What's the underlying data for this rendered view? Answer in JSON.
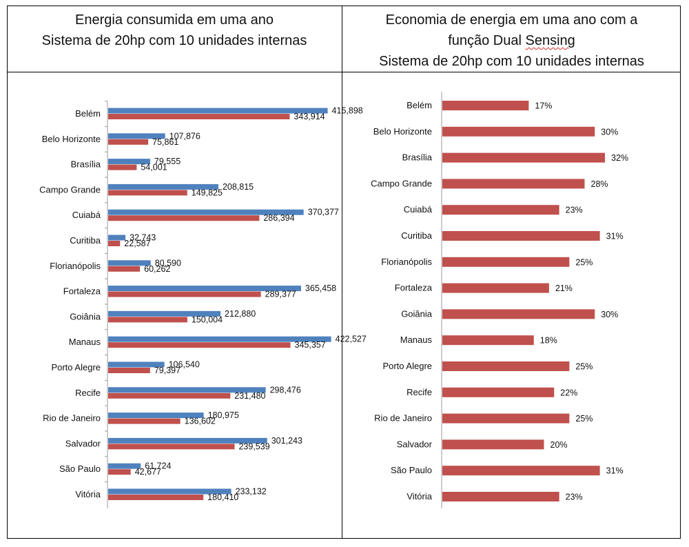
{
  "left_title": {
    "line1": "Energia consumida em uma ano",
    "line2": "Sistema de 20hp com 10 unidades internas"
  },
  "right_title": {
    "line1": "Economia de energia em uma ano com a",
    "line2_prefix": "função Dual ",
    "line2_word": "Sensing",
    "line3": "Sistema de 20hp com 10 unidades internas"
  },
  "chart_data": [
    {
      "type": "bar",
      "orientation": "horizontal",
      "title": "Energia consumida em uma ano Sistema de 20hp com 10 unidades internas",
      "categories": [
        "Belém",
        "Belo Horizonte",
        "Brasília",
        "Campo Grande",
        "Cuiabá",
        "Curitiba",
        "Florianópolis",
        "Fortaleza",
        "Goiânia",
        "Manaus",
        "Porto Alegre",
        "Recife",
        "Rio de Janeiro",
        "Salvador",
        "São Paulo",
        "Vitória"
      ],
      "series": [
        {
          "color": "#4f81bd",
          "values": [
            415898,
            107876,
            79555,
            208815,
            370377,
            32743,
            80590,
            365458,
            212880,
            422527,
            106540,
            298476,
            180975,
            301243,
            61724,
            233132
          ],
          "labels": [
            "415,898",
            "107,876",
            "79,555",
            "208,815",
            "370,377",
            "32,743",
            "80,590",
            "365,458",
            "212,880",
            "422,527",
            "106,540",
            "298,476",
            "180,975",
            "301,243",
            "61,724",
            "233,132"
          ]
        },
        {
          "color": "#c0504d",
          "values": [
            343914,
            75861,
            54001,
            149825,
            286394,
            22587,
            60262,
            289377,
            150004,
            345357,
            79397,
            231480,
            136602,
            239539,
            42677,
            180410
          ],
          "labels": [
            "343,914",
            "75,861",
            "54,001",
            "149,825",
            "286,394",
            "22,587",
            "60,262",
            "289,377",
            "150,004",
            "345,357",
            "79,397",
            "231,480",
            "136,602",
            "239,539",
            "42,677",
            "180,410"
          ]
        }
      ],
      "xlim": [
        0,
        470000
      ],
      "grid": false,
      "legend": "none"
    },
    {
      "type": "bar",
      "orientation": "horizontal",
      "title": "Economia de energia em uma ano com a função Dual Sensing Sistema de 20hp com 10 unidades internas",
      "categories": [
        "Belém",
        "Belo Horizonte",
        "Brasília",
        "Campo Grande",
        "Cuiabá",
        "Curitiba",
        "Florianópolis",
        "Fortaleza",
        "Goiânia",
        "Manaus",
        "Porto Alegre",
        "Recife",
        "Rio de Janeiro",
        "Salvador",
        "São Paulo",
        "Vitória"
      ],
      "series": [
        {
          "color": "#c0504d",
          "values": [
            17,
            30,
            32,
            28,
            23,
            31,
            25,
            21,
            30,
            18,
            25,
            22,
            25,
            20,
            31,
            23
          ],
          "labels": [
            "17%",
            "30%",
            "32%",
            "28%",
            "23%",
            "31%",
            "25%",
            "21%",
            "30%",
            "18%",
            "25%",
            "22%",
            "25%",
            "20%",
            "31%",
            "23%"
          ]
        }
      ],
      "xlim": [
        0,
        32
      ],
      "unit": "%",
      "grid": false,
      "legend": "none"
    }
  ]
}
